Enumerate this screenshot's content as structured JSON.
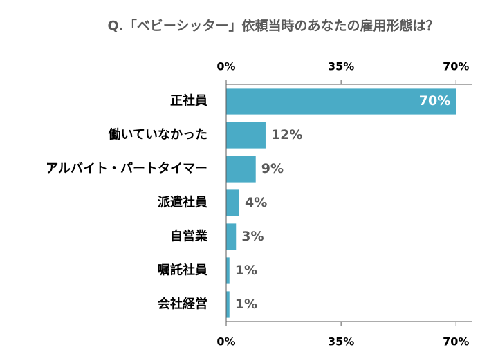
{
  "chart_data": {
    "type": "bar",
    "orientation": "horizontal",
    "title": "Q.「ベビーシッター」依頼当時のあなたの雇用形態は？",
    "categories": [
      "正社員",
      "働いていなかった",
      "アルバイト・パートタイマー",
      "派遣社員",
      "自営業",
      "嘱託社員",
      "会社経営"
    ],
    "values": [
      70,
      12,
      9,
      4,
      3,
      1,
      1
    ],
    "value_labels": [
      "70%",
      "12%",
      "9%",
      "4%",
      "3%",
      "1%",
      "1%"
    ],
    "color": "#4aabc6",
    "xlim": [
      0,
      75
    ],
    "xticks": [
      {
        "value": 0,
        "label": "0%"
      },
      {
        "value": 35,
        "label": "35%"
      },
      {
        "value": 70,
        "label": "70%"
      }
    ]
  }
}
